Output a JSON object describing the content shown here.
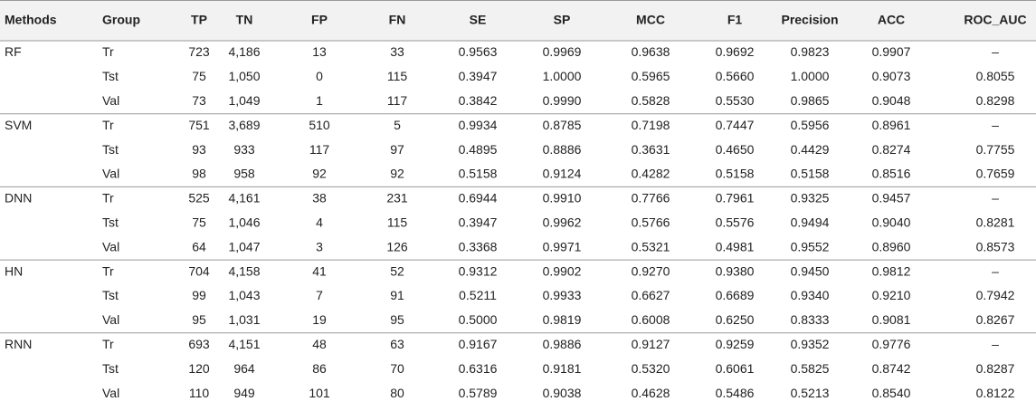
{
  "table": {
    "header": [
      "Methods",
      "Group",
      "TP",
      "TN",
      "FP",
      "FN",
      "SE",
      "SP",
      "MCC",
      "F1",
      "Precision",
      "ACC",
      "ROC_AUC"
    ],
    "groups": [
      {
        "method": "RF",
        "rows": [
          [
            "Tr",
            "723",
            "4,186",
            "13",
            "33",
            "0.9563",
            "0.9969",
            "0.9638",
            "0.9692",
            "0.9823",
            "0.9907",
            "–"
          ],
          [
            "Tst",
            "75",
            "1,050",
            "0",
            "115",
            "0.3947",
            "1.0000",
            "0.5965",
            "0.5660",
            "1.0000",
            "0.9073",
            "0.8055"
          ],
          [
            "Val",
            "73",
            "1,049",
            "1",
            "117",
            "0.3842",
            "0.9990",
            "0.5828",
            "0.5530",
            "0.9865",
            "0.9048",
            "0.8298"
          ]
        ]
      },
      {
        "method": "SVM",
        "rows": [
          [
            "Tr",
            "751",
            "3,689",
            "510",
            "5",
            "0.9934",
            "0.8785",
            "0.7198",
            "0.7447",
            "0.5956",
            "0.8961",
            "–"
          ],
          [
            "Tst",
            "93",
            "933",
            "117",
            "97",
            "0.4895",
            "0.8886",
            "0.3631",
            "0.4650",
            "0.4429",
            "0.8274",
            "0.7755"
          ],
          [
            "Val",
            "98",
            "958",
            "92",
            "92",
            "0.5158",
            "0.9124",
            "0.4282",
            "0.5158",
            "0.5158",
            "0.8516",
            "0.7659"
          ]
        ]
      },
      {
        "method": "DNN",
        "rows": [
          [
            "Tr",
            "525",
            "4,161",
            "38",
            "231",
            "0.6944",
            "0.9910",
            "0.7766",
            "0.7961",
            "0.9325",
            "0.9457",
            "–"
          ],
          [
            "Tst",
            "75",
            "1,046",
            "4",
            "115",
            "0.3947",
            "0.9962",
            "0.5766",
            "0.5576",
            "0.9494",
            "0.9040",
            "0.8281"
          ],
          [
            "Val",
            "64",
            "1,047",
            "3",
            "126",
            "0.3368",
            "0.9971",
            "0.5321",
            "0.4981",
            "0.9552",
            "0.8960",
            "0.8573"
          ]
        ]
      },
      {
        "method": "HN",
        "rows": [
          [
            "Tr",
            "704",
            "4,158",
            "41",
            "52",
            "0.9312",
            "0.9902",
            "0.9270",
            "0.9380",
            "0.9450",
            "0.9812",
            "–"
          ],
          [
            "Tst",
            "99",
            "1,043",
            "7",
            "91",
            "0.5211",
            "0.9933",
            "0.6627",
            "0.6689",
            "0.9340",
            "0.9210",
            "0.7942"
          ],
          [
            "Val",
            "95",
            "1,031",
            "19",
            "95",
            "0.5000",
            "0.9819",
            "0.6008",
            "0.6250",
            "0.8333",
            "0.9081",
            "0.8267"
          ]
        ]
      },
      {
        "method": "RNN",
        "rows": [
          [
            "Tr",
            "693",
            "4,151",
            "48",
            "63",
            "0.9167",
            "0.9886",
            "0.9127",
            "0.9259",
            "0.9352",
            "0.9776",
            "–"
          ],
          [
            "Tst",
            "120",
            "964",
            "86",
            "70",
            "0.6316",
            "0.9181",
            "0.5320",
            "0.6061",
            "0.5825",
            "0.8742",
            "0.8287"
          ],
          [
            "Val",
            "110",
            "949",
            "101",
            "80",
            "0.5789",
            "0.9038",
            "0.4628",
            "0.5486",
            "0.5213",
            "0.8540",
            "0.8122"
          ]
        ]
      }
    ]
  }
}
